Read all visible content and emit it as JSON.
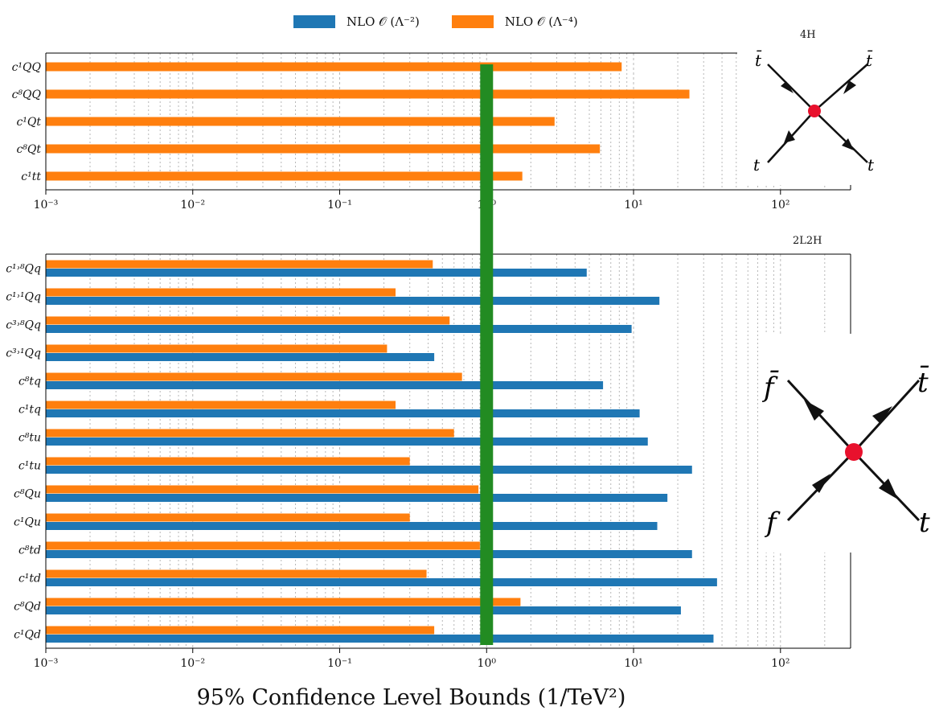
{
  "legend": {
    "lo_label": "NLO 𝒪 (Λ⁻²)",
    "hi_label": "NLO 𝒪 (Λ⁻⁴)",
    "lo_color": "#1f77b4",
    "hi_color": "#ff7f0e"
  },
  "panel_tags": {
    "top": "4H",
    "bottom": "2L2H"
  },
  "x_axis_title": "95% Confidence Level Bounds (1/TeV²)",
  "reference_line": {
    "x": 1,
    "color": "#228b22"
  },
  "diagrams": {
    "top": {
      "labels": [
        "t̄",
        "t̄",
        "t",
        "t"
      ],
      "vertex_color": "#e8112d"
    },
    "bottom": {
      "labels": [
        "f̄",
        "t̄",
        "f",
        "t"
      ],
      "vertex_color": "#e8112d"
    }
  },
  "chart_data": [
    {
      "type": "bar",
      "orientation": "horizontal",
      "xscale": "log",
      "xlim": [
        0.001,
        300
      ],
      "xticks": [
        "10⁻³",
        "10⁻²",
        "10⁻¹",
        "10⁰",
        "10¹",
        "10²"
      ],
      "categories": [
        "c¹QQ",
        "c⁸QQ",
        "c¹Qt",
        "c⁸Qt",
        "c¹tt"
      ],
      "series": [
        {
          "name": "NLO 𝒪 (Λ⁻⁴)",
          "values": [
            8.3,
            24,
            2.9,
            5.9,
            1.75
          ]
        }
      ]
    },
    {
      "type": "bar",
      "orientation": "horizontal",
      "xscale": "log",
      "xlim": [
        0.001,
        300
      ],
      "xticks": [
        "10⁻³",
        "10⁻²",
        "10⁻¹",
        "10⁰",
        "10¹",
        "10²"
      ],
      "categories": [
        "c¹˒⁸Qq",
        "c¹˒¹Qq",
        "c³˒⁸Qq",
        "c³˒¹Qq",
        "c⁸tq",
        "c¹tq",
        "c⁸tu",
        "c¹tu",
        "c⁸Qu",
        "c¹Qu",
        "c⁸td",
        "c¹td",
        "c⁸Qd",
        "c¹Qd"
      ],
      "series": [
        {
          "name": "NLO 𝒪 (Λ⁻⁴)",
          "values": [
            0.43,
            0.24,
            0.56,
            0.21,
            0.68,
            0.24,
            0.6,
            0.3,
            0.88,
            0.3,
            0.9,
            0.39,
            1.7,
            0.44
          ]
        },
        {
          "name": "NLO 𝒪 (Λ⁻²)",
          "values": [
            4.8,
            15,
            9.7,
            0.44,
            6.2,
            11,
            12.5,
            25,
            17,
            14.5,
            25,
            37,
            21,
            35
          ]
        }
      ]
    }
  ]
}
